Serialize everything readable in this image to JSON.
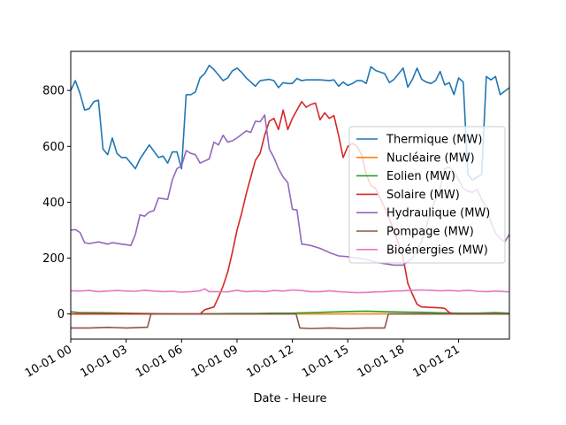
{
  "chart_data": {
    "type": "line",
    "title": "",
    "xlabel": "Date - Heure",
    "ylabel": "",
    "x_ticks": [
      "10-01 00",
      "10-01 03",
      "10-01 06",
      "10-01 09",
      "10-01 12",
      "10-01 15",
      "10-01 18",
      "10-01 21"
    ],
    "y_ticks": [
      "0",
      "200",
      "400",
      "600",
      "800"
    ],
    "xlim_hours": [
      0,
      23.75
    ],
    "ylim": [
      -90,
      940
    ],
    "legend_position": "center-right",
    "grid": false,
    "series": [
      {
        "name": "Thermique (MW)",
        "color": "#1f77b4",
        "points": [
          [
            0,
            800
          ],
          [
            0.25,
            835
          ],
          [
            0.5,
            790
          ],
          [
            0.75,
            730
          ],
          [
            1,
            735
          ],
          [
            1.25,
            760
          ],
          [
            1.5,
            765
          ],
          [
            1.75,
            590
          ],
          [
            2,
            570
          ],
          [
            2.25,
            630
          ],
          [
            2.5,
            575
          ],
          [
            2.75,
            560
          ],
          [
            3,
            560
          ],
          [
            3.5,
            520
          ],
          [
            3.75,
            555
          ],
          [
            4.25,
            605
          ],
          [
            4.75,
            560
          ],
          [
            5,
            565
          ],
          [
            5.25,
            540
          ],
          [
            5.5,
            580
          ],
          [
            5.75,
            580
          ],
          [
            6,
            520
          ],
          [
            6.25,
            785
          ],
          [
            6.5,
            785
          ],
          [
            6.75,
            795
          ],
          [
            7,
            845
          ],
          [
            7.25,
            860
          ],
          [
            7.5,
            890
          ],
          [
            7.75,
            875
          ],
          [
            8,
            855
          ],
          [
            8.25,
            835
          ],
          [
            8.5,
            845
          ],
          [
            8.75,
            870
          ],
          [
            9,
            880
          ],
          [
            9.25,
            865
          ],
          [
            9.5,
            845
          ],
          [
            9.75,
            830
          ],
          [
            10,
            815
          ],
          [
            10.25,
            835
          ],
          [
            10.75,
            840
          ],
          [
            11,
            835
          ],
          [
            11.25,
            810
          ],
          [
            11.5,
            828
          ],
          [
            11.75,
            825
          ],
          [
            12,
            825
          ],
          [
            12.25,
            843
          ],
          [
            12.5,
            835
          ],
          [
            12.75,
            838
          ],
          [
            13.5,
            838
          ],
          [
            14,
            835
          ],
          [
            14.25,
            838
          ],
          [
            14.5,
            815
          ],
          [
            14.75,
            830
          ],
          [
            15,
            818
          ],
          [
            15.25,
            825
          ],
          [
            15.5,
            835
          ],
          [
            15.75,
            835
          ],
          [
            16,
            825
          ],
          [
            16.25,
            885
          ],
          [
            16.5,
            872
          ],
          [
            17,
            860
          ],
          [
            17.25,
            828
          ],
          [
            17.5,
            840
          ],
          [
            17.75,
            860
          ],
          [
            18,
            880
          ],
          [
            18.25,
            812
          ],
          [
            18.5,
            840
          ],
          [
            18.75,
            880
          ],
          [
            19,
            840
          ],
          [
            19.25,
            830
          ],
          [
            19.5,
            825
          ],
          [
            19.75,
            835
          ],
          [
            20,
            868
          ],
          [
            20.25,
            820
          ],
          [
            20.5,
            828
          ],
          [
            20.75,
            785
          ],
          [
            21,
            845
          ],
          [
            21.25,
            830
          ],
          [
            21.5,
            500
          ],
          [
            21.75,
            480
          ],
          [
            22,
            490
          ],
          [
            22.25,
            500
          ],
          [
            22.5,
            850
          ],
          [
            22.75,
            838
          ],
          [
            23,
            850
          ],
          [
            23.25,
            785
          ],
          [
            23.75,
            810
          ]
        ]
      },
      {
        "name": "Nucléaire (MW)",
        "color": "#ff7f0e",
        "points": [
          [
            0,
            0
          ],
          [
            23.75,
            0
          ]
        ]
      },
      {
        "name": "Eolien (MW)",
        "color": "#2ca02c",
        "points": [
          [
            0,
            8
          ],
          [
            0.5,
            5
          ],
          [
            1,
            5
          ],
          [
            2,
            4
          ],
          [
            3,
            3
          ],
          [
            4,
            2
          ],
          [
            5,
            1
          ],
          [
            6,
            0
          ],
          [
            7,
            0
          ],
          [
            8,
            1
          ],
          [
            9,
            2
          ],
          [
            10,
            2
          ],
          [
            11,
            3
          ],
          [
            12,
            3
          ],
          [
            13,
            5
          ],
          [
            14,
            7
          ],
          [
            15,
            9
          ],
          [
            16,
            10
          ],
          [
            17,
            8
          ],
          [
            18,
            7
          ],
          [
            19,
            6
          ],
          [
            20,
            4
          ],
          [
            21,
            3
          ],
          [
            22,
            3
          ],
          [
            23,
            5
          ],
          [
            23.75,
            3
          ]
        ]
      },
      {
        "name": "Solaire (MW)",
        "color": "#d62728",
        "points": [
          [
            0,
            0
          ],
          [
            7,
            0
          ],
          [
            7.25,
            15
          ],
          [
            7.5,
            20
          ],
          [
            7.75,
            25
          ],
          [
            8,
            60
          ],
          [
            8.25,
            100
          ],
          [
            8.5,
            150
          ],
          [
            8.75,
            220
          ],
          [
            9,
            300
          ],
          [
            9.25,
            360
          ],
          [
            9.5,
            430
          ],
          [
            9.75,
            490
          ],
          [
            10,
            550
          ],
          [
            10.25,
            575
          ],
          [
            10.5,
            640
          ],
          [
            10.75,
            690
          ],
          [
            11,
            700
          ],
          [
            11.25,
            660
          ],
          [
            11.5,
            730
          ],
          [
            11.75,
            660
          ],
          [
            12,
            700
          ],
          [
            12.25,
            730
          ],
          [
            12.5,
            760
          ],
          [
            12.75,
            740
          ],
          [
            13,
            750
          ],
          [
            13.25,
            755
          ],
          [
            13.5,
            695
          ],
          [
            13.75,
            720
          ],
          [
            14,
            700
          ],
          [
            14.25,
            710
          ],
          [
            14.5,
            640
          ],
          [
            14.75,
            560
          ],
          [
            15,
            600
          ],
          [
            15.25,
            610
          ],
          [
            15.5,
            600
          ],
          [
            15.75,
            570
          ],
          [
            16,
            500
          ],
          [
            16.25,
            460
          ],
          [
            16.5,
            450
          ],
          [
            17,
            380
          ],
          [
            17.5,
            300
          ],
          [
            18,
            200
          ],
          [
            18.25,
            110
          ],
          [
            18.5,
            70
          ],
          [
            18.75,
            35
          ],
          [
            19,
            25
          ],
          [
            20,
            22
          ],
          [
            20.25,
            20
          ],
          [
            20.5,
            5
          ],
          [
            20.75,
            0
          ],
          [
            23.75,
            0
          ]
        ]
      },
      {
        "name": "Hydraulique (MW)",
        "color": "#9467bd",
        "points": [
          [
            0,
            300
          ],
          [
            0.25,
            302
          ],
          [
            0.5,
            292
          ],
          [
            0.75,
            255
          ],
          [
            1,
            252
          ],
          [
            1.5,
            258
          ],
          [
            2,
            250
          ],
          [
            2.25,
            255
          ],
          [
            2.75,
            250
          ],
          [
            3,
            248
          ],
          [
            3.25,
            245
          ],
          [
            3.5,
            285
          ],
          [
            3.75,
            355
          ],
          [
            4,
            350
          ],
          [
            4.25,
            365
          ],
          [
            4.5,
            370
          ],
          [
            4.75,
            415
          ],
          [
            5.25,
            410
          ],
          [
            5.5,
            480
          ],
          [
            5.75,
            520
          ],
          [
            6,
            530
          ],
          [
            6.25,
            585
          ],
          [
            6.5,
            575
          ],
          [
            6.75,
            570
          ],
          [
            7,
            540
          ],
          [
            7.5,
            555
          ],
          [
            7.75,
            615
          ],
          [
            8,
            605
          ],
          [
            8.25,
            640
          ],
          [
            8.5,
            615
          ],
          [
            8.75,
            620
          ],
          [
            9,
            630
          ],
          [
            9.5,
            655
          ],
          [
            9.75,
            650
          ],
          [
            10,
            690
          ],
          [
            10.25,
            688
          ],
          [
            10.5,
            712
          ],
          [
            10.75,
            590
          ],
          [
            11,
            560
          ],
          [
            11.25,
            520
          ],
          [
            11.5,
            490
          ],
          [
            11.75,
            470
          ],
          [
            12,
            375
          ],
          [
            12.25,
            372
          ],
          [
            12.5,
            250
          ],
          [
            12.75,
            248
          ],
          [
            13,
            245
          ],
          [
            13.5,
            235
          ],
          [
            14,
            220
          ],
          [
            14.5,
            208
          ],
          [
            15,
            205
          ],
          [
            15.5,
            200
          ],
          [
            16,
            195
          ],
          [
            16.5,
            185
          ],
          [
            17,
            180
          ],
          [
            17.5,
            175
          ],
          [
            18,
            175
          ],
          [
            18.5,
            200
          ],
          [
            19,
            260
          ],
          [
            19.5,
            370
          ],
          [
            20,
            450
          ],
          [
            20.25,
            520
          ],
          [
            20.5,
            525
          ],
          [
            20.75,
            510
          ],
          [
            21,
            480
          ],
          [
            21.25,
            450
          ],
          [
            21.5,
            440
          ],
          [
            21.75,
            435
          ],
          [
            22,
            445
          ],
          [
            22.25,
            410
          ],
          [
            22.5,
            380
          ],
          [
            22.75,
            330
          ],
          [
            23,
            290
          ],
          [
            23.25,
            270
          ],
          [
            23.5,
            258
          ],
          [
            23.75,
            285
          ]
        ]
      },
      {
        "name": "Pompage (MW)",
        "color": "#8c564b",
        "points": [
          [
            0,
            -50
          ],
          [
            1,
            -50
          ],
          [
            2,
            -48
          ],
          [
            3,
            -50
          ],
          [
            4,
            -48
          ],
          [
            4.15,
            -48
          ],
          [
            4.35,
            0
          ],
          [
            12.2,
            0
          ],
          [
            12.4,
            -50
          ],
          [
            13,
            -52
          ],
          [
            14,
            -50
          ],
          [
            15,
            -52
          ],
          [
            16,
            -50
          ],
          [
            17,
            -50
          ],
          [
            17.2,
            0
          ],
          [
            23.75,
            0
          ]
        ]
      },
      {
        "name": "Bioénergies (MW)",
        "color": "#e377c2",
        "points": [
          [
            0,
            83
          ],
          [
            0.5,
            82
          ],
          [
            1,
            84
          ],
          [
            1.5,
            80
          ],
          [
            2,
            82
          ],
          [
            2.5,
            84
          ],
          [
            3,
            82
          ],
          [
            3.5,
            81
          ],
          [
            4,
            85
          ],
          [
            4.5,
            82
          ],
          [
            5,
            80
          ],
          [
            5.5,
            81
          ],
          [
            6,
            78
          ],
          [
            6.5,
            80
          ],
          [
            7,
            83
          ],
          [
            7.25,
            90
          ],
          [
            7.5,
            80
          ],
          [
            8,
            80
          ],
          [
            8.5,
            79
          ],
          [
            9,
            85
          ],
          [
            9.5,
            80
          ],
          [
            10,
            82
          ],
          [
            10.5,
            80
          ],
          [
            11,
            84
          ],
          [
            11.5,
            82
          ],
          [
            12,
            86
          ],
          [
            12.5,
            84
          ],
          [
            13,
            80
          ],
          [
            13.5,
            80
          ],
          [
            14,
            83
          ],
          [
            14.5,
            80
          ],
          [
            15,
            78
          ],
          [
            15.5,
            76
          ],
          [
            16,
            77
          ],
          [
            16.5,
            79
          ],
          [
            17,
            80
          ],
          [
            17.5,
            82
          ],
          [
            18,
            83
          ],
          [
            18.5,
            85
          ],
          [
            19,
            86
          ],
          [
            19.5,
            85
          ],
          [
            20,
            83
          ],
          [
            20.5,
            84
          ],
          [
            21,
            82
          ],
          [
            21.5,
            85
          ],
          [
            22,
            81
          ],
          [
            22.5,
            80
          ],
          [
            23,
            82
          ],
          [
            23.75,
            79
          ]
        ]
      }
    ]
  }
}
